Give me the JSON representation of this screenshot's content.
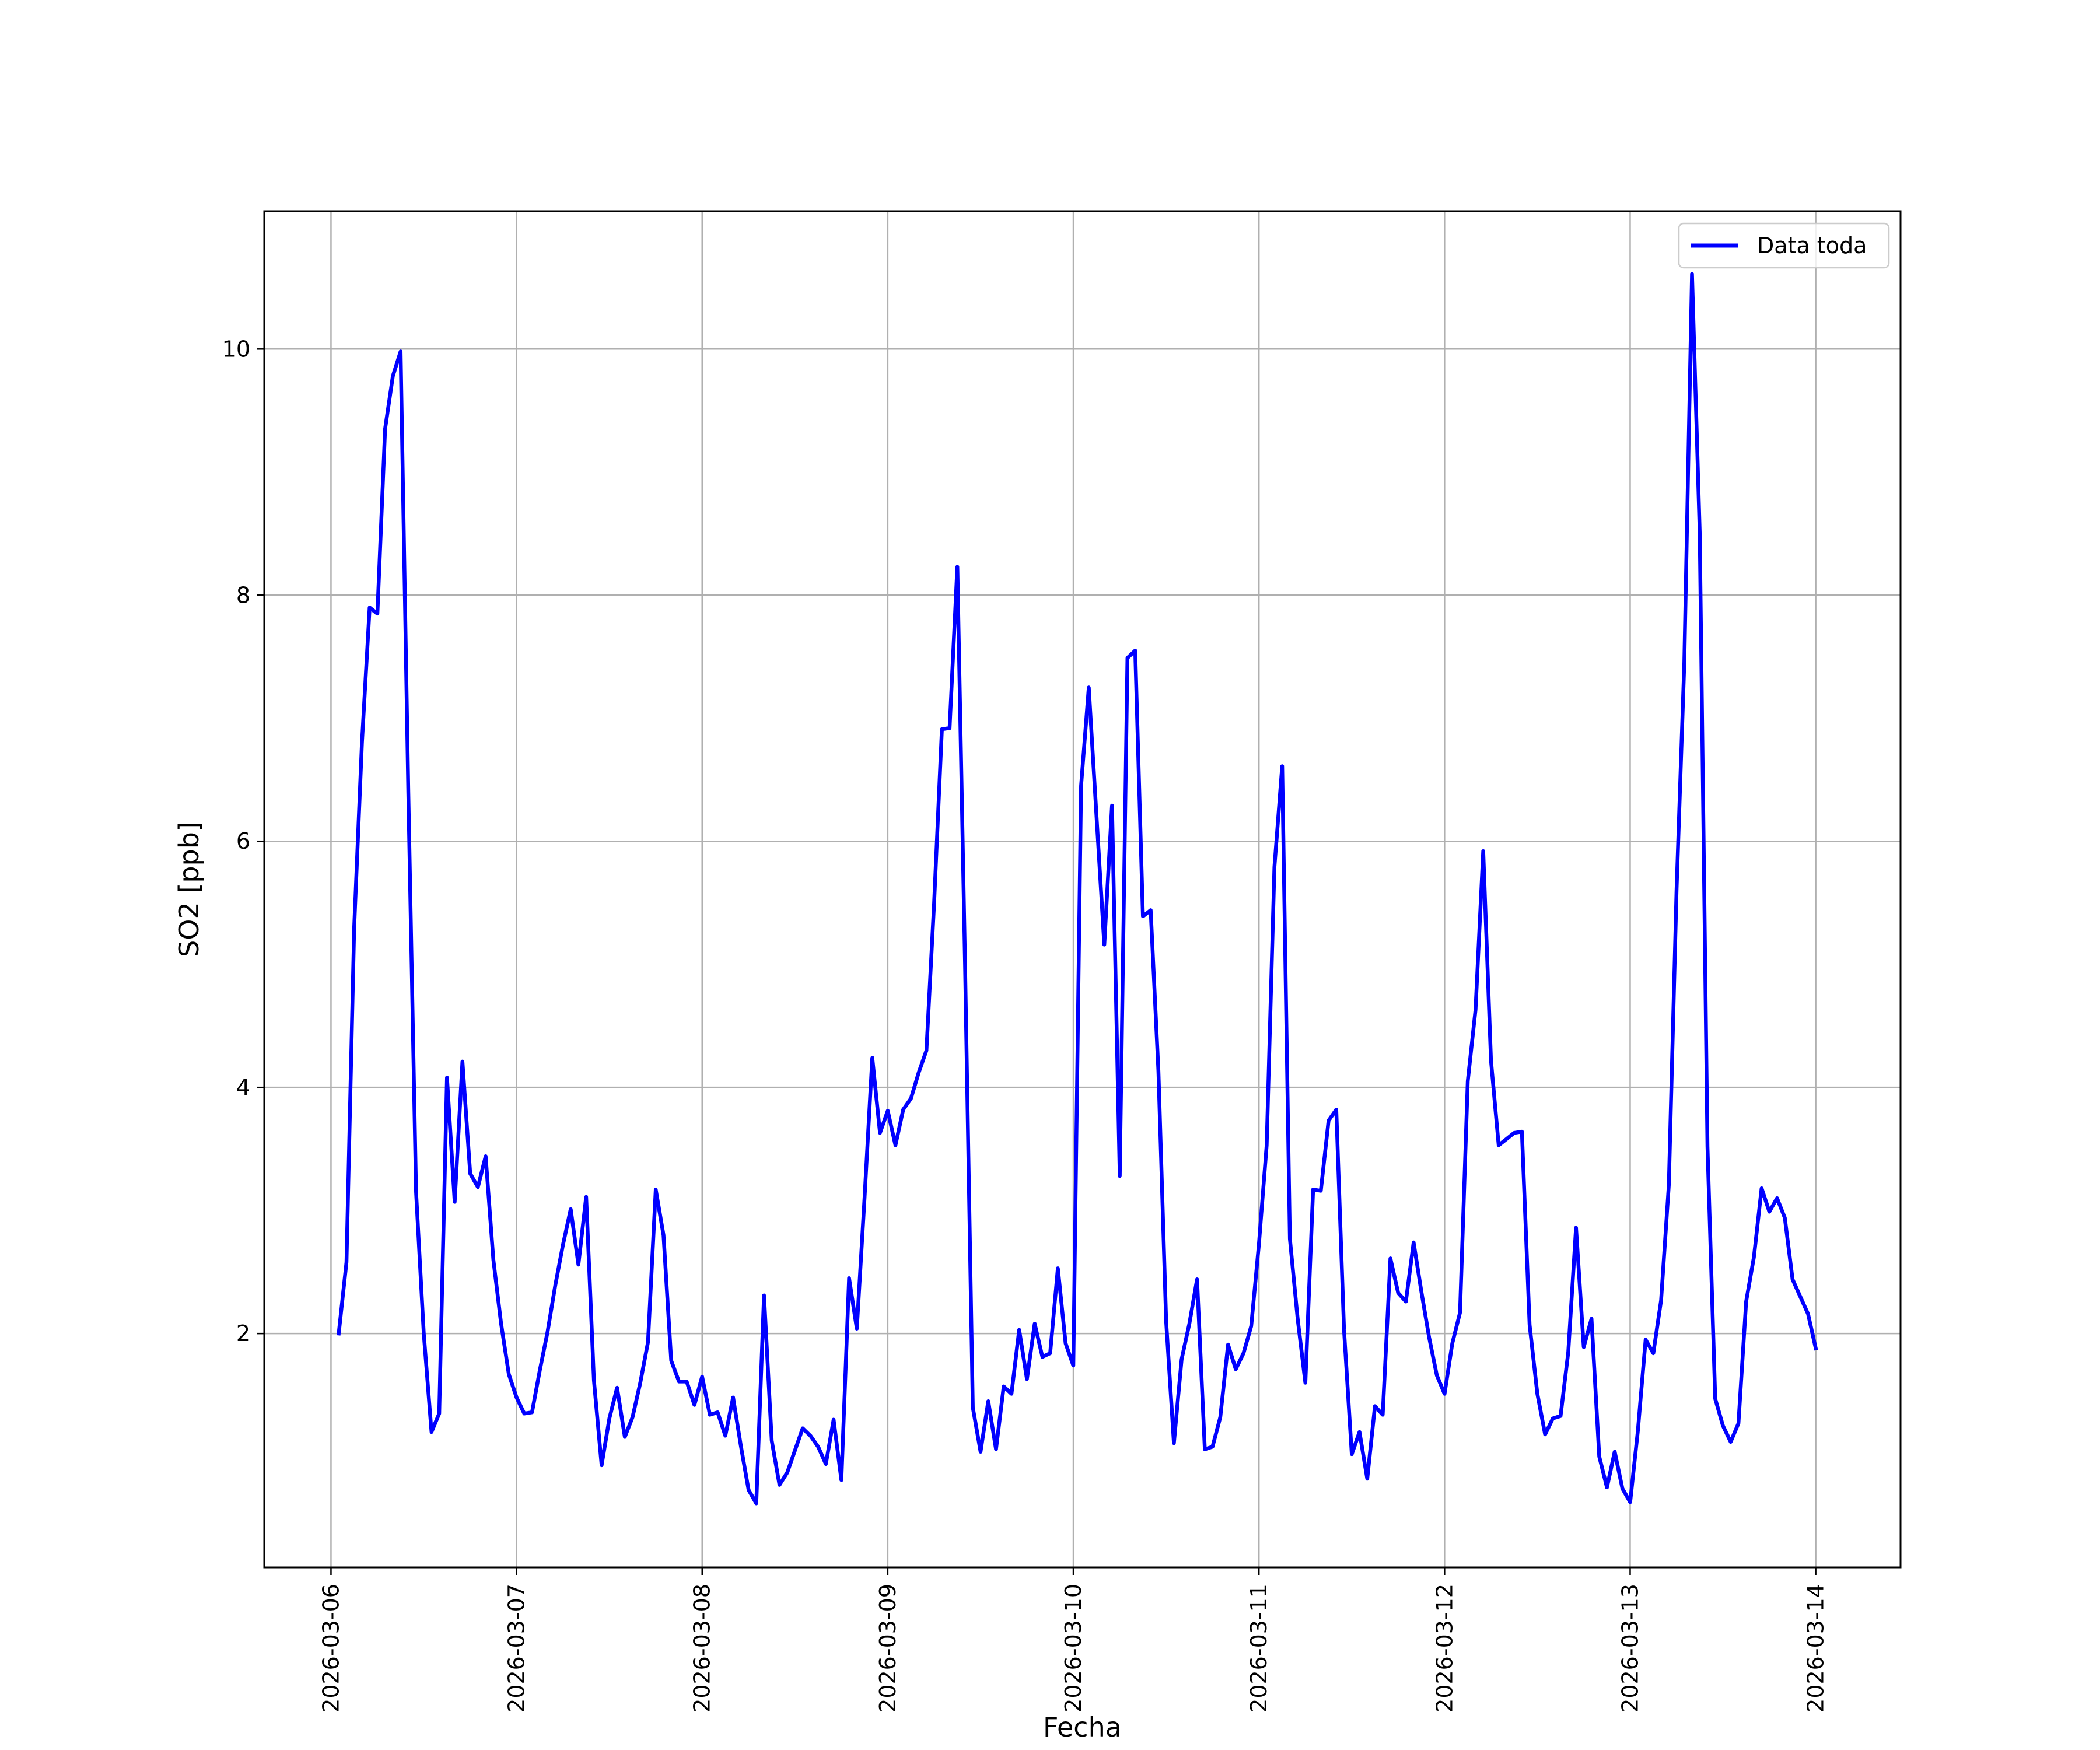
{
  "chart_data": {
    "type": "line",
    "xlabel": "Fecha",
    "ylabel": "SO2 [ppb]",
    "x_tick_labels": [
      "2026-03-06",
      "2026-03-07",
      "2026-03-08",
      "2026-03-09",
      "2026-03-10",
      "2026-03-11",
      "2026-03-12",
      "2026-03-13",
      "2026-03-14"
    ],
    "y_tick_labels": [
      "2",
      "4",
      "6",
      "8",
      "10"
    ],
    "xlim": [
      "2026-03-05 15:22",
      "2026-03-14 10:58"
    ],
    "ylim": [
      0.1,
      11.12
    ],
    "grid": true,
    "legend_position": "top-right",
    "series": [
      {
        "name": "Data toda",
        "color": "#0000ff",
        "x": [
          "2026-03-06 01:00",
          "2026-03-06 02:00",
          "2026-03-06 03:00",
          "2026-03-06 04:00",
          "2026-03-06 05:00",
          "2026-03-06 06:00",
          "2026-03-06 07:00",
          "2026-03-06 08:00",
          "2026-03-06 09:00",
          "2026-03-06 10:00",
          "2026-03-06 11:00",
          "2026-03-06 12:00",
          "2026-03-06 13:00",
          "2026-03-06 14:00",
          "2026-03-06 15:00",
          "2026-03-06 16:00",
          "2026-03-06 17:00",
          "2026-03-06 18:00",
          "2026-03-06 19:00",
          "2026-03-06 20:00",
          "2026-03-06 21:00",
          "2026-03-06 22:00",
          "2026-03-06 23:00",
          "2026-03-07 00:00",
          "2026-03-07 01:00",
          "2026-03-07 02:00",
          "2026-03-07 03:00",
          "2026-03-07 04:00",
          "2026-03-07 05:00",
          "2026-03-07 06:00",
          "2026-03-07 07:00",
          "2026-03-07 08:00",
          "2026-03-07 09:00",
          "2026-03-07 10:00",
          "2026-03-07 11:00",
          "2026-03-07 12:00",
          "2026-03-07 13:00",
          "2026-03-07 14:00",
          "2026-03-07 15:00",
          "2026-03-07 16:00",
          "2026-03-07 17:00",
          "2026-03-07 18:00",
          "2026-03-07 19:00",
          "2026-03-07 20:00",
          "2026-03-07 21:00",
          "2026-03-07 22:00",
          "2026-03-07 23:00",
          "2026-03-08 00:00",
          "2026-03-08 01:00",
          "2026-03-08 02:00",
          "2026-03-08 03:00",
          "2026-03-08 04:00",
          "2026-03-08 05:00",
          "2026-03-08 06:00",
          "2026-03-08 07:00",
          "2026-03-08 08:00",
          "2026-03-08 09:00",
          "2026-03-08 10:00",
          "2026-03-08 11:00",
          "2026-03-08 12:00",
          "2026-03-08 13:00",
          "2026-03-08 14:00",
          "2026-03-08 15:00",
          "2026-03-08 16:00",
          "2026-03-08 17:00",
          "2026-03-08 18:00",
          "2026-03-08 19:00",
          "2026-03-08 20:00",
          "2026-03-08 21:00",
          "2026-03-08 22:00",
          "2026-03-08 23:00",
          "2026-03-09 00:00",
          "2026-03-09 01:00",
          "2026-03-09 02:00",
          "2026-03-09 03:00",
          "2026-03-09 04:00",
          "2026-03-09 05:00",
          "2026-03-09 06:00",
          "2026-03-09 07:00",
          "2026-03-09 08:00",
          "2026-03-09 09:00",
          "2026-03-09 10:00",
          "2026-03-09 11:00",
          "2026-03-09 12:00",
          "2026-03-09 13:00",
          "2026-03-09 14:00",
          "2026-03-09 15:00",
          "2026-03-09 16:00",
          "2026-03-09 17:00",
          "2026-03-09 18:00",
          "2026-03-09 19:00",
          "2026-03-09 20:00",
          "2026-03-09 21:00",
          "2026-03-09 22:00",
          "2026-03-09 23:00",
          "2026-03-10 00:00",
          "2026-03-10 01:00",
          "2026-03-10 02:00",
          "2026-03-10 03:00",
          "2026-03-10 04:00",
          "2026-03-10 05:00",
          "2026-03-10 06:00",
          "2026-03-10 07:00",
          "2026-03-10 08:00",
          "2026-03-10 09:00",
          "2026-03-10 10:00",
          "2026-03-10 11:00",
          "2026-03-10 12:00",
          "2026-03-10 13:00",
          "2026-03-10 14:00",
          "2026-03-10 15:00",
          "2026-03-10 16:00",
          "2026-03-10 17:00",
          "2026-03-10 18:00",
          "2026-03-10 19:00",
          "2026-03-10 20:00",
          "2026-03-10 21:00",
          "2026-03-10 22:00",
          "2026-03-10 23:00",
          "2026-03-11 00:00",
          "2026-03-11 01:00",
          "2026-03-11 02:00",
          "2026-03-11 03:00",
          "2026-03-11 04:00",
          "2026-03-11 05:00",
          "2026-03-11 06:00",
          "2026-03-11 07:00",
          "2026-03-11 08:00",
          "2026-03-11 09:00",
          "2026-03-11 10:00",
          "2026-03-11 11:00",
          "2026-03-11 12:00",
          "2026-03-11 13:00",
          "2026-03-11 14:00",
          "2026-03-11 15:00",
          "2026-03-11 16:00",
          "2026-03-11 17:00",
          "2026-03-11 18:00",
          "2026-03-11 19:00",
          "2026-03-11 20:00",
          "2026-03-11 21:00",
          "2026-03-11 22:00",
          "2026-03-11 23:00",
          "2026-03-12 00:00",
          "2026-03-12 01:00",
          "2026-03-12 02:00",
          "2026-03-12 03:00",
          "2026-03-12 04:00",
          "2026-03-12 05:00",
          "2026-03-12 06:00",
          "2026-03-12 07:00",
          "2026-03-12 08:00",
          "2026-03-12 09:00",
          "2026-03-12 10:00",
          "2026-03-12 11:00",
          "2026-03-12 12:00",
          "2026-03-12 13:00",
          "2026-03-12 14:00",
          "2026-03-12 15:00",
          "2026-03-12 16:00",
          "2026-03-12 17:00",
          "2026-03-12 18:00",
          "2026-03-12 19:00",
          "2026-03-12 20:00",
          "2026-03-12 21:00",
          "2026-03-12 22:00",
          "2026-03-12 23:00",
          "2026-03-13 00:00",
          "2026-03-13 01:00",
          "2026-03-13 02:00",
          "2026-03-13 03:00",
          "2026-03-13 04:00",
          "2026-03-13 05:00",
          "2026-03-13 06:00",
          "2026-03-13 07:00",
          "2026-03-13 08:00",
          "2026-03-13 09:00",
          "2026-03-13 10:00",
          "2026-03-13 11:00",
          "2026-03-13 12:00",
          "2026-03-13 13:00",
          "2026-03-13 14:00",
          "2026-03-13 15:00",
          "2026-03-13 16:00",
          "2026-03-13 17:00",
          "2026-03-13 18:00",
          "2026-03-13 19:00",
          "2026-03-13 20:00",
          "2026-03-13 21:00",
          "2026-03-13 22:00",
          "2026-03-13 23:00",
          "2026-03-14 00:00"
        ],
        "y": [
          2.0,
          2.58,
          5.3,
          6.8,
          7.9,
          7.85,
          9.35,
          9.78,
          9.98,
          6.4,
          3.15,
          2.0,
          1.2,
          1.35,
          4.08,
          3.07,
          4.21,
          3.3,
          3.19,
          3.44,
          2.6,
          2.08,
          1.67,
          1.48,
          1.35,
          1.36,
          1.7,
          2.01,
          2.39,
          2.72,
          3.01,
          2.56,
          3.11,
          1.62,
          0.93,
          1.31,
          1.56,
          1.16,
          1.32,
          1.6,
          1.93,
          3.17,
          2.8,
          1.78,
          1.61,
          1.61,
          1.42,
          1.65,
          1.34,
          1.36,
          1.17,
          1.48,
          1.09,
          0.73,
          0.62,
          2.31,
          1.13,
          0.77,
          0.87,
          1.05,
          1.23,
          1.17,
          1.08,
          0.94,
          1.3,
          0.81,
          2.45,
          2.04,
          3.1,
          4.24,
          3.63,
          3.81,
          3.53,
          3.82,
          3.91,
          4.12,
          4.3,
          5.5,
          6.91,
          6.92,
          8.23,
          5.0,
          1.4,
          1.04,
          1.45,
          1.06,
          1.57,
          1.51,
          2.03,
          1.63,
          2.08,
          1.81,
          1.84,
          2.53,
          1.92,
          1.74,
          6.45,
          7.25,
          6.2,
          5.16,
          6.29,
          3.28,
          7.49,
          7.55,
          5.39,
          5.44,
          4.13,
          2.1,
          1.11,
          1.79,
          2.08,
          2.44,
          1.06,
          1.08,
          1.32,
          1.91,
          1.71,
          1.84,
          2.06,
          2.73,
          3.53,
          5.79,
          6.61,
          2.77,
          2.12,
          1.6,
          3.17,
          3.16,
          3.73,
          3.82,
          2.03,
          1.02,
          1.2,
          0.82,
          1.41,
          1.34,
          2.61,
          2.33,
          2.26,
          2.74,
          2.34,
          1.97,
          1.66,
          1.51,
          1.92,
          2.17,
          4.05,
          4.63,
          5.92,
          4.22,
          3.53,
          3.58,
          3.63,
          3.64,
          2.07,
          1.51,
          1.18,
          1.31,
          1.33,
          1.85,
          2.86,
          1.89,
          2.12,
          1.0,
          0.75,
          1.04,
          0.74,
          0.63,
          1.21,
          1.95,
          1.84,
          2.27,
          3.21,
          5.6,
          7.45,
          10.61,
          8.5,
          3.52,
          1.47,
          1.25,
          1.12,
          1.27,
          2.26,
          2.62,
          3.18,
          2.99,
          3.1,
          2.94,
          2.44,
          2.3,
          2.16,
          1.88
        ]
      }
    ]
  }
}
